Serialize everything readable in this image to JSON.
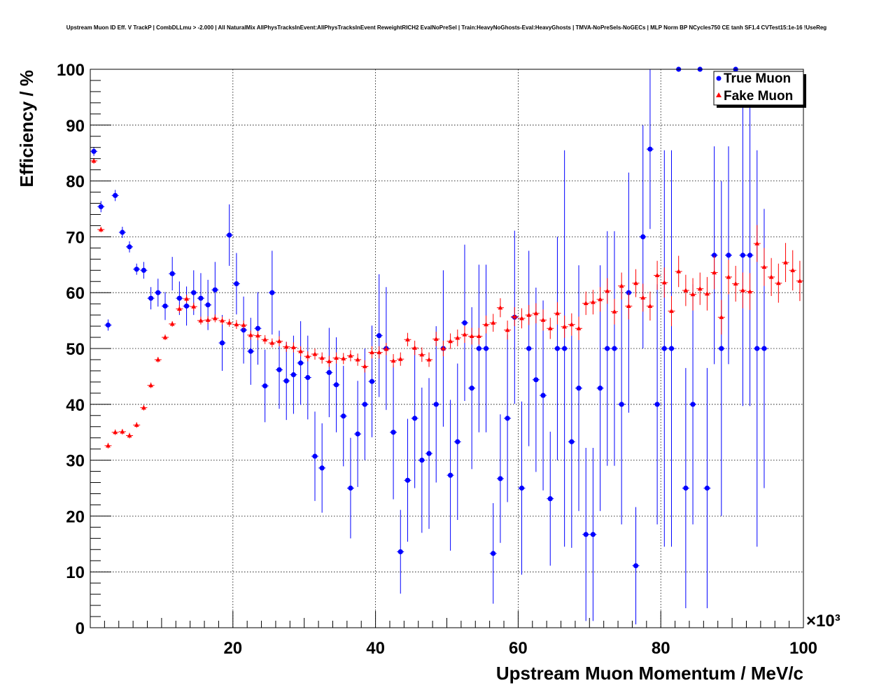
{
  "chart_data": {
    "type": "scatter",
    "title": "Upstream Muon ID Eff. V TrackP | CombDLLmu > -2.000 | All NaturalMix AllPhysTracksInEvent:AllPhysTracksInEvent ReweightRICH2 EvalNoPreSel | Train:HeavyNoGhosts-Eval:HeavyGhosts | TMVA-NoPreSels-NoGECs | MLP Norm BP NCycles750 CE tanh SF1.4 CVTest15:1e-16 !UseReg",
    "xlabel": "Upstream Muon Momentum / MeV/c",
    "ylabel": "Efficiency / %",
    "x_multiplier": "×10³",
    "xlim": [
      0,
      100000
    ],
    "ylim": [
      0,
      100
    ],
    "x_ticks": [
      20000,
      40000,
      60000,
      80000,
      100000
    ],
    "x_tick_labels": [
      "20",
      "40",
      "60",
      "80",
      "100"
    ],
    "y_ticks": [
      0,
      10,
      20,
      30,
      40,
      50,
      60,
      70,
      80,
      90,
      100
    ],
    "y_tick_labels": [
      "0",
      "10",
      "20",
      "30",
      "40",
      "50",
      "60",
      "70",
      "80",
      "90",
      "100"
    ],
    "grid": true,
    "legend_position": "top-right",
    "series": [
      {
        "name": "True Muon",
        "color": "#0000ff",
        "marker": "circle",
        "points": [
          [
            500,
            85.3,
            0.8
          ],
          [
            1500,
            75.4,
            1
          ],
          [
            2500,
            54.2,
            1
          ],
          [
            3500,
            77.4,
            1
          ],
          [
            4500,
            70.8,
            1
          ],
          [
            5500,
            68.2,
            1
          ],
          [
            6500,
            64.2,
            1
          ],
          [
            7500,
            64,
            1.5
          ],
          [
            8500,
            59,
            2
          ],
          [
            9500,
            60,
            2.5
          ],
          [
            10500,
            57.6,
            2.5
          ],
          [
            11500,
            63.4,
            3
          ],
          [
            12500,
            59,
            3
          ],
          [
            13500,
            57.6,
            3.5
          ],
          [
            14500,
            60,
            4
          ],
          [
            15500,
            59,
            4.5
          ],
          [
            16500,
            57.8,
            4.5
          ],
          [
            17500,
            60.5,
            5
          ],
          [
            18500,
            51,
            5
          ],
          [
            19500,
            70.3,
            5.5
          ],
          [
            20500,
            61.6,
            5.5
          ],
          [
            21500,
            53.3,
            6
          ],
          [
            22500,
            49.5,
            6
          ],
          [
            23500,
            53.6,
            6.5
          ],
          [
            24500,
            43.3,
            6.5
          ],
          [
            25500,
            60,
            7.5
          ],
          [
            26500,
            46.2,
            7
          ],
          [
            27500,
            44.2,
            7
          ],
          [
            28500,
            45.3,
            7
          ],
          [
            29500,
            47.4,
            7.5
          ],
          [
            30500,
            44.8,
            7.5
          ],
          [
            31500,
            30.7,
            8
          ],
          [
            32500,
            28.6,
            8
          ],
          [
            33500,
            45.7,
            8
          ],
          [
            34500,
            43.5,
            8.5
          ],
          [
            35500,
            37.9,
            9
          ],
          [
            36500,
            25,
            9
          ],
          [
            37500,
            34.7,
            9.5
          ],
          [
            38500,
            40,
            10
          ],
          [
            39500,
            44.1,
            10
          ],
          [
            40500,
            52.3,
            11
          ],
          [
            41500,
            50,
            11
          ],
          [
            42500,
            35,
            12
          ],
          [
            43500,
            13.6,
            7.5
          ],
          [
            44500,
            26.4,
            11
          ],
          [
            45500,
            37.5,
            12.5
          ],
          [
            46500,
            30,
            13
          ],
          [
            47500,
            31.2,
            13.5
          ],
          [
            48500,
            40,
            14
          ],
          [
            49500,
            50,
            14
          ],
          [
            50500,
            27.3,
            13.5
          ],
          [
            51500,
            33.3,
            14
          ],
          [
            52500,
            54.6,
            14
          ],
          [
            53500,
            42.9,
            14.5
          ],
          [
            54500,
            50,
            15
          ],
          [
            55500,
            50,
            15
          ],
          [
            56500,
            13.3,
            9
          ],
          [
            57500,
            26.7,
            11.5
          ],
          [
            58500,
            37.5,
            15
          ],
          [
            59500,
            55.6,
            15.5
          ],
          [
            60500,
            25,
            15.5
          ],
          [
            61500,
            50,
            17.5
          ],
          [
            62500,
            44.4,
            16.5
          ],
          [
            63500,
            41.6,
            17
          ],
          [
            64500,
            23.1,
            12
          ],
          [
            65500,
            50,
            20
          ],
          [
            66500,
            50,
            35.5
          ],
          [
            67500,
            33.3,
            19
          ],
          [
            68500,
            42.9,
            22
          ],
          [
            69500,
            16.7,
            15.5
          ],
          [
            70500,
            16.7,
            15.5
          ],
          [
            71500,
            42.9,
            22
          ],
          [
            72500,
            50,
            21
          ],
          [
            73500,
            50,
            21
          ],
          [
            74500,
            40,
            21.5
          ],
          [
            75500,
            60,
            21.5
          ],
          [
            76500,
            11.1,
            10.5
          ],
          [
            77500,
            70,
            20
          ],
          [
            78500,
            85.7,
            14.3
          ],
          [
            79500,
            40,
            21.5
          ],
          [
            80500,
            50,
            35.5
          ],
          [
            81500,
            50,
            35.5
          ],
          [
            82500,
            100,
            0
          ],
          [
            83500,
            25,
            21.5
          ],
          [
            84500,
            40,
            21.5
          ],
          [
            85500,
            100,
            0
          ],
          [
            86500,
            25,
            21.5
          ],
          [
            87500,
            66.7,
            19.5
          ],
          [
            88500,
            50,
            30
          ],
          [
            89500,
            66.7,
            19.5
          ],
          [
            90500,
            100,
            0
          ],
          [
            91500,
            66.7,
            27
          ],
          [
            92500,
            66.7,
            27
          ],
          [
            93500,
            50,
            35.5
          ],
          [
            94500,
            50,
            25
          ]
        ]
      },
      {
        "name": "Fake Muon",
        "color": "#ff0000",
        "marker": "triangle",
        "points": [
          [
            500,
            83.6,
            0.5
          ],
          [
            1500,
            71.3,
            0.5
          ],
          [
            2500,
            32.6,
            0.5
          ],
          [
            3500,
            35,
            0.5
          ],
          [
            4500,
            35.1,
            0.5
          ],
          [
            5500,
            34.4,
            0.5
          ],
          [
            6500,
            36.3,
            0.5
          ],
          [
            7500,
            39.4,
            0.5
          ],
          [
            8500,
            43.4,
            0.5
          ],
          [
            9500,
            48,
            0.5
          ],
          [
            10500,
            52,
            0.5
          ],
          [
            11500,
            54.4,
            0.5
          ],
          [
            12500,
            57.1,
            0.7
          ],
          [
            13500,
            58.9,
            0.7
          ],
          [
            14500,
            57.5,
            0.7
          ],
          [
            15500,
            55,
            0.7
          ],
          [
            16500,
            55.1,
            0.7
          ],
          [
            17500,
            55.4,
            0.7
          ],
          [
            18500,
            55,
            0.7
          ],
          [
            19500,
            54.6,
            0.7
          ],
          [
            20500,
            54.3,
            0.8
          ],
          [
            21500,
            54.2,
            0.8
          ],
          [
            22500,
            52.4,
            0.8
          ],
          [
            23500,
            52.3,
            0.8
          ],
          [
            24500,
            51.6,
            0.8
          ],
          [
            25500,
            51,
            0.8
          ],
          [
            26500,
            51.3,
            0.9
          ],
          [
            27500,
            50.3,
            0.9
          ],
          [
            28500,
            50.2,
            0.9
          ],
          [
            29500,
            49.5,
            0.9
          ],
          [
            30500,
            48.6,
            0.9
          ],
          [
            31500,
            49,
            1
          ],
          [
            32500,
            48.3,
            1
          ],
          [
            33500,
            47.7,
            1
          ],
          [
            34500,
            48.3,
            1
          ],
          [
            35500,
            48.2,
            1
          ],
          [
            36500,
            48.7,
            1
          ],
          [
            37500,
            48,
            1.1
          ],
          [
            38500,
            46.8,
            1.1
          ],
          [
            39500,
            49.3,
            1.1
          ],
          [
            40500,
            49.3,
            1.1
          ],
          [
            41500,
            49.9,
            1.1
          ],
          [
            42500,
            47.8,
            1.2
          ],
          [
            43500,
            48.1,
            1.2
          ],
          [
            44500,
            51.6,
            1.2
          ],
          [
            45500,
            50.1,
            1.3
          ],
          [
            46500,
            48.9,
            1.3
          ],
          [
            47500,
            48,
            1.3
          ],
          [
            48500,
            51.7,
            1.3
          ],
          [
            49500,
            50,
            1.4
          ],
          [
            50500,
            51.3,
            1.4
          ],
          [
            51500,
            51.9,
            1.5
          ],
          [
            52500,
            52.5,
            1.5
          ],
          [
            53500,
            52.2,
            1.5
          ],
          [
            54500,
            52.2,
            1.5
          ],
          [
            55500,
            54.3,
            1.6
          ],
          [
            56500,
            54.6,
            1.6
          ],
          [
            57500,
            57.3,
            1.7
          ],
          [
            58500,
            53.3,
            1.7
          ],
          [
            59500,
            55.7,
            1.7
          ],
          [
            60500,
            55.4,
            1.8
          ],
          [
            61500,
            56,
            1.8
          ],
          [
            62500,
            56.3,
            1.8
          ],
          [
            63500,
            55.1,
            1.9
          ],
          [
            64500,
            53.6,
            1.9
          ],
          [
            65500,
            56.3,
            2
          ],
          [
            66500,
            53.9,
            2
          ],
          [
            67500,
            54.3,
            2
          ],
          [
            68500,
            53.6,
            2.1
          ],
          [
            69500,
            58.1,
            2.1
          ],
          [
            70500,
            58.3,
            2.2
          ],
          [
            71500,
            58.8,
            2.2
          ],
          [
            72500,
            60.3,
            2.3
          ],
          [
            73500,
            56.6,
            2.3
          ],
          [
            74500,
            61.2,
            2.4
          ],
          [
            75500,
            57.6,
            2.4
          ],
          [
            76500,
            61.7,
            2.5
          ],
          [
            77500,
            59.1,
            2.5
          ],
          [
            78500,
            57.6,
            2.6
          ],
          [
            79500,
            63.1,
            2.6
          ],
          [
            80500,
            61.8,
            2.7
          ],
          [
            81500,
            56.7,
            2.7
          ],
          [
            82500,
            63.8,
            2.8
          ],
          [
            83500,
            60.4,
            2.8
          ],
          [
            84500,
            59.7,
            2.9
          ],
          [
            85500,
            60.7,
            2.9
          ],
          [
            86500,
            59.8,
            3
          ],
          [
            87500,
            63.6,
            3
          ],
          [
            88500,
            55.6,
            3.1
          ],
          [
            89500,
            62.8,
            3.1
          ],
          [
            90500,
            61.6,
            3.2
          ],
          [
            91500,
            60.4,
            3.2
          ],
          [
            92500,
            60.2,
            3.3
          ],
          [
            93500,
            68.8,
            3.3
          ],
          [
            94500,
            64.6,
            3.4
          ],
          [
            95500,
            62.8,
            3.4
          ],
          [
            96500,
            61.7,
            3.5
          ],
          [
            97500,
            65.4,
            3.5
          ],
          [
            98500,
            64,
            3.6
          ],
          [
            99500,
            62.1,
            3.6
          ]
        ]
      }
    ]
  }
}
